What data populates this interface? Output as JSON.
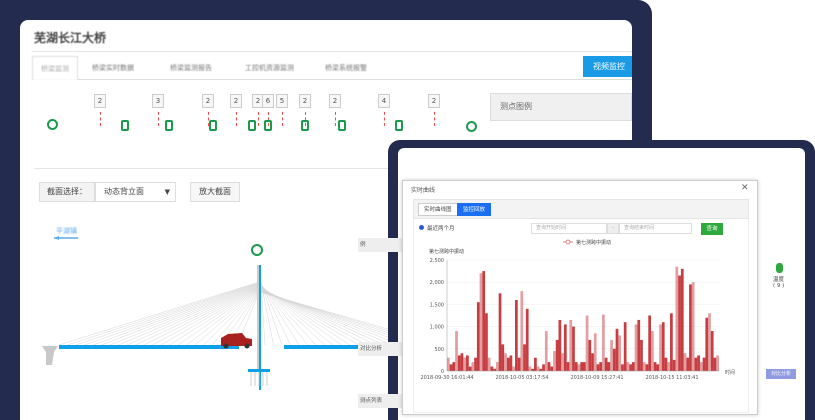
{
  "main_window": {
    "title": "芜湖长江大桥",
    "tabs": [
      {
        "label": "桥梁监测",
        "active": true
      },
      {
        "label": "桥梁实时数据",
        "active": false
      },
      {
        "label": "桥梁监测报告",
        "active": false
      },
      {
        "label": "工控机资源监测",
        "active": false
      },
      {
        "label": "桥梁系统报警",
        "active": false
      }
    ],
    "video_button": "视频监控",
    "sensor_counts": [
      "2",
      "3",
      "2",
      "2",
      "2",
      "6",
      "5",
      "2",
      "2",
      "4",
      "2"
    ],
    "legend_panel_title": "测点图例",
    "section_label": "截面选择：",
    "section_select_value": "动态背立面",
    "zoom_section_button": "放大截面",
    "direction_label": "平湖镇",
    "colors": {
      "accent": "#1a9be6",
      "sensor": "#1a9a4a",
      "deck": "#0fa0e8",
      "frame": "#232b4f"
    }
  },
  "modal": {
    "title": "实时曲线",
    "close_icon": "close-icon",
    "tabs": [
      {
        "label": "实时曲线图",
        "active": false
      },
      {
        "label": "监控回放",
        "active": true
      }
    ],
    "radio_label": "最近两个月",
    "start_placeholder": "查询开始时间",
    "end_placeholder": "查询结束时间",
    "separator": "-",
    "query_button": "查询"
  },
  "side_panel": {
    "legend_header": "例",
    "temperature_label": "温度",
    "temperature_count": "( 9 )",
    "compare_header": "对比分析",
    "compare_button": "对比分析",
    "list_header": "测点列表"
  },
  "chart_data": {
    "type": "bar",
    "title": "",
    "ylabel": "第七测跨中振动",
    "xlabel": "时间",
    "legend": [
      "第七测跨中振动"
    ],
    "legend_position": "top-center",
    "ylim": [
      0,
      2500
    ],
    "yticks": [
      "0",
      "500",
      "1,000",
      "1,500",
      "2,000",
      "2,500"
    ],
    "xticks": [
      "2018-09-30 16:01:44",
      "2018-10-05 03:17:54",
      "2018-10-09 15:27:41",
      "2018-10-15 11:03:41"
    ],
    "grid": true,
    "color": "#c0282d",
    "series": [
      {
        "name": "第七测跨中振动",
        "values": [
          300,
          150,
          200,
          900,
          350,
          400,
          300,
          350,
          100,
          200,
          300,
          1550,
          2200,
          2250,
          1300,
          300,
          100,
          50,
          200,
          1750,
          600,
          400,
          300,
          350,
          100,
          1600,
          300,
          1800,
          600,
          1400,
          100,
          50,
          300,
          100,
          50,
          150,
          900,
          200,
          100,
          450,
          700,
          1150,
          400,
          1050,
          200,
          1150,
          1000,
          200,
          150,
          200,
          200,
          1250,
          700,
          400,
          850,
          150,
          200,
          1270,
          300,
          200,
          700,
          500,
          950,
          800,
          150,
          1100,
          200,
          150,
          200,
          1050,
          1150,
          700,
          200,
          150,
          1250,
          900,
          200,
          150,
          1050,
          1100,
          300,
          200,
          1300,
          250,
          2350,
          2150,
          2300,
          400,
          300,
          1950,
          2000,
          300,
          350,
          200,
          300,
          1200,
          1300,
          900,
          300,
          350
        ]
      }
    ]
  }
}
